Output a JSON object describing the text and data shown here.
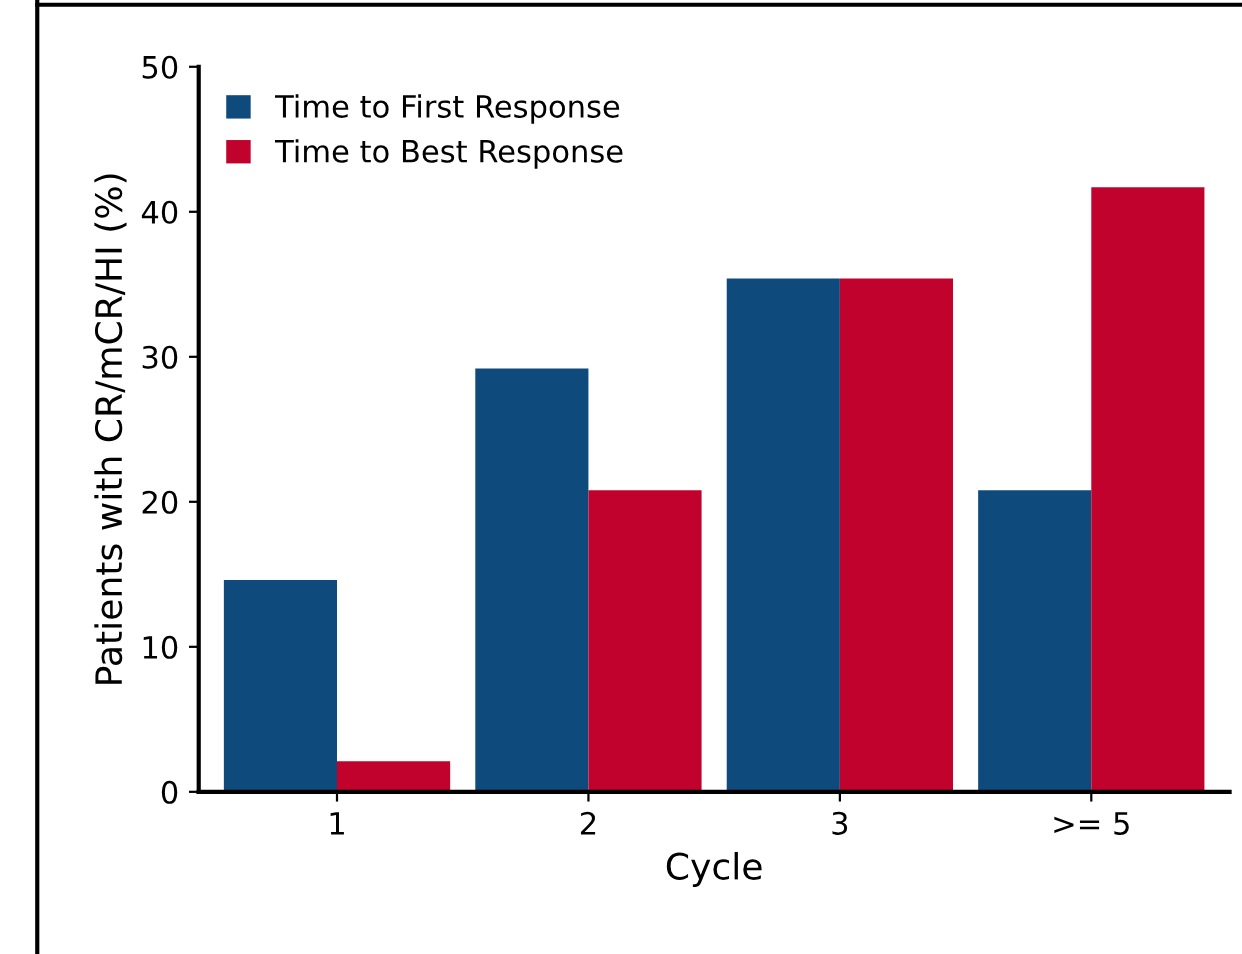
{
  "chart_data": {
    "type": "bar",
    "xlabel": "Cycle",
    "ylabel": "Patients with CR/mCR/HI (%)",
    "categories": [
      "1",
      "2",
      "3",
      ">= 5"
    ],
    "series": [
      {
        "name": "Time to First Response",
        "color": "#0f4a7c",
        "values": [
          14.6,
          29.2,
          35.4,
          20.8
        ]
      },
      {
        "name": "Time to Best Response",
        "color": "#c0022c",
        "values": [
          2.1,
          20.8,
          35.4,
          41.7
        ]
      }
    ],
    "ylim": [
      0,
      50
    ],
    "yticks": [
      0,
      10,
      20,
      30,
      40,
      50
    ],
    "grid": false,
    "legend": "top left"
  }
}
